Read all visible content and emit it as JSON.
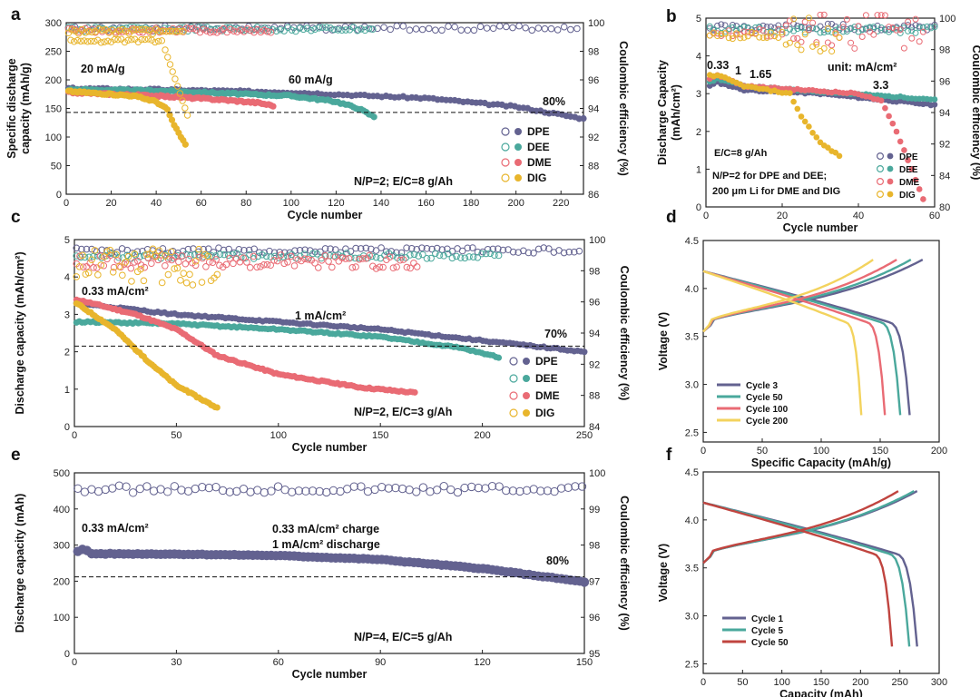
{
  "chart_data": [
    {
      "panel": "a",
      "type": "scatter",
      "xlabel": "Cycle number",
      "ylabel_lines": [
        "Specific discharge",
        "capacity (mAh/g)"
      ],
      "y2label": "Coulombic efficiency (%)",
      "xlim": [
        0,
        230
      ],
      "xticks": [
        0,
        20,
        40,
        60,
        80,
        100,
        120,
        140,
        160,
        180,
        200,
        220
      ],
      "ylim": [
        0,
        300
      ],
      "yticks": [
        0,
        50,
        100,
        150,
        200,
        250,
        300
      ],
      "y2ticks": [
        "86",
        "88",
        "92",
        "94",
        "96",
        "98",
        "100"
      ],
      "annotations": [
        "20 mA/g",
        "60 mA/g",
        "80%",
        "N/P=2;  E/C=8 g/Ah"
      ],
      "ref_line": 143,
      "series": [
        {
          "name": "DPE",
          "color": "#636290",
          "cap_x": [
            1,
            230
          ],
          "cap_pts": [
            [
              1,
              185
            ],
            [
              40,
              183
            ],
            [
              100,
              178
            ],
            [
              160,
              168
            ],
            [
              200,
              153
            ],
            [
              230,
              132
            ]
          ],
          "ce_x": [
            1,
            230
          ],
          "ce_y": 99.95
        },
        {
          "name": "DEE",
          "color": "#4aa89c",
          "cap_x": [
            1,
            138
          ],
          "cap_pts": [
            [
              1,
              183
            ],
            [
              40,
              181
            ],
            [
              100,
              172
            ],
            [
              120,
              162
            ],
            [
              130,
              150
            ],
            [
              138,
              133
            ]
          ],
          "ce_x": [
            1,
            138
          ],
          "ce_y": 99.8
        },
        {
          "name": "DME",
          "color": "#e96b74",
          "cap_x": [
            1,
            92
          ],
          "cap_pts": [
            [
              1,
              178
            ],
            [
              40,
              172
            ],
            [
              70,
              165
            ],
            [
              85,
              160
            ],
            [
              92,
              155
            ]
          ],
          "ce_x": [
            1,
            92
          ],
          "ce_y": 99.7
        },
        {
          "name": "DIG",
          "color": "#e8b52c",
          "cap_x": [
            1,
            53
          ],
          "cap_pts": [
            [
              1,
              180
            ],
            [
              30,
              172
            ],
            [
              40,
              162
            ],
            [
              45,
              148
            ],
            [
              48,
              120
            ],
            [
              53,
              87
            ]
          ],
          "ce_x": [
            1,
            53
          ],
          "ce_y": 99.2
        }
      ]
    },
    {
      "panel": "b",
      "type": "scatter",
      "xlabel": "Cycle number",
      "ylabel_lines": [
        "Discharge Capacity",
        "(mAh/cm²)"
      ],
      "y2label": "Coulombic efficiency (%)",
      "xlim": [
        0,
        60
      ],
      "xticks": [
        0,
        20,
        40,
        60
      ],
      "ylim": [
        0,
        5
      ],
      "yticks": [
        0,
        1,
        2,
        3,
        4,
        5
      ],
      "y2ticks": [
        "80",
        "84",
        "92",
        "94",
        "96",
        "98",
        "100"
      ],
      "annotations": [
        "0.33",
        "1",
        "1.65",
        "unit: mA/cm²",
        "3.3",
        "E/C=8 g/Ah",
        "N/P=2 for DPE and DEE;",
        "200 μm Li for DME and DIG"
      ],
      "series": [
        {
          "name": "DPE",
          "color": "#636290",
          "cap_pts": [
            [
              1,
              3.2
            ],
            [
              3,
              3.3
            ],
            [
              10,
              3.1
            ],
            [
              30,
              3.0
            ],
            [
              60,
              2.7
            ]
          ]
        },
        {
          "name": "DEE",
          "color": "#4aa89c",
          "cap_pts": [
            [
              1,
              3.3
            ],
            [
              3,
              3.4
            ],
            [
              10,
              3.2
            ],
            [
              30,
              3.05
            ],
            [
              60,
              2.85
            ]
          ]
        },
        {
          "name": "DME",
          "color": "#e96b74",
          "cap_pts": [
            [
              1,
              3.4
            ],
            [
              3,
              3.5
            ],
            [
              10,
              3.2
            ],
            [
              40,
              3.0
            ],
            [
              46,
              2.8
            ],
            [
              50,
              2.0
            ],
            [
              54,
              1.0
            ],
            [
              57,
              0.2
            ]
          ]
        },
        {
          "name": "DIG",
          "color": "#e8b52c",
          "cap_pts": [
            [
              1,
              3.5
            ],
            [
              4,
              3.45
            ],
            [
              10,
              3.2
            ],
            [
              22,
              3.0
            ],
            [
              25,
              2.4
            ],
            [
              30,
              1.7
            ],
            [
              35,
              1.35
            ]
          ]
        }
      ]
    },
    {
      "panel": "c",
      "type": "scatter",
      "xlabel": "Cycle number",
      "ylabel": "Discharge capacity (mAh/cm²)",
      "y2label": "Coulombic efficiency (%)",
      "xlim": [
        0,
        250
      ],
      "xticks": [
        0,
        50,
        100,
        150,
        200,
        250
      ],
      "ylim": [
        0,
        5
      ],
      "yticks": [
        0,
        1,
        2,
        3,
        4,
        5
      ],
      "y2ticks": [
        "84",
        "88",
        "92",
        "94",
        "96",
        "98",
        "100"
      ],
      "annotations": [
        "0.33 mA/cm²",
        "1 mA/cm²",
        "70%",
        "N/P=2, E/C=3 g/Ah"
      ],
      "ref_line": 2.15,
      "series": [
        {
          "name": "DPE",
          "color": "#636290",
          "cap_pts": [
            [
              1,
              3.3
            ],
            [
              50,
              3.0
            ],
            [
              100,
              2.8
            ],
            [
              150,
              2.6
            ],
            [
              200,
              2.3
            ],
            [
              250,
              2.0
            ]
          ]
        },
        {
          "name": "DEE",
          "color": "#4aa89c",
          "cap_pts": [
            [
              1,
              2.8
            ],
            [
              50,
              2.75
            ],
            [
              100,
              2.6
            ],
            [
              150,
              2.4
            ],
            [
              190,
              2.1
            ],
            [
              208,
              1.85
            ]
          ]
        },
        {
          "name": "DME",
          "color": "#e96b74",
          "cap_pts": [
            [
              1,
              3.4
            ],
            [
              30,
              3.0
            ],
            [
              50,
              2.6
            ],
            [
              70,
              1.9
            ],
            [
              100,
              1.4
            ],
            [
              140,
              1.05
            ],
            [
              168,
              0.9
            ]
          ]
        },
        {
          "name": "DIG",
          "color": "#e8b52c",
          "cap_pts": [
            [
              1,
              3.3
            ],
            [
              20,
              2.6
            ],
            [
              35,
              1.8
            ],
            [
              50,
              1.1
            ],
            [
              60,
              0.8
            ],
            [
              70,
              0.5
            ]
          ]
        }
      ]
    },
    {
      "panel": "d",
      "type": "line",
      "xlabel": "Specific Capacity (mAh/g)",
      "ylabel": "Voltage (V)",
      "xlim": [
        0,
        200
      ],
      "xticks": [
        0,
        50,
        100,
        150,
        200
      ],
      "ylim": [
        2.4,
        4.5
      ],
      "yticks": [
        2.5,
        3.0,
        3.5,
        4.0,
        4.5
      ],
      "series": [
        {
          "name": "Cycle 3",
          "color": "#636290",
          "max_cap": 175,
          "max_chg": 186
        },
        {
          "name": "Cycle 50",
          "color": "#4aa89c",
          "max_cap": 167,
          "max_chg": 176
        },
        {
          "name": "Cycle 100",
          "color": "#e96b74",
          "max_cap": 154,
          "max_chg": 164
        },
        {
          "name": "Cycle 200",
          "color": "#f3d35e",
          "max_cap": 134,
          "max_chg": 144
        }
      ]
    },
    {
      "panel": "e",
      "type": "scatter",
      "xlabel": "Cycle number",
      "ylabel": "Discharge capacity (mAh)",
      "y2label": "Coulombic efficiency (%)",
      "xlim": [
        0,
        150
      ],
      "xticks": [
        0,
        30,
        60,
        90,
        120,
        150
      ],
      "ylim": [
        0,
        500
      ],
      "yticks": [
        0,
        100,
        200,
        300,
        400,
        500
      ],
      "y2ticks": [
        "95",
        "96",
        "97",
        "98",
        "99",
        "100"
      ],
      "annotations": [
        "0.33 mA/cm²",
        "0.33 mA/cm² charge",
        "1 mA/cm² discharge",
        "80%",
        "N/P=4, E/C=5 g/Ah"
      ],
      "ref_line": 212,
      "series": [
        {
          "name": "DPE",
          "color": "#636290",
          "cap_pts": [
            [
              1,
              282
            ],
            [
              3,
              290
            ],
            [
              5,
              276
            ],
            [
              30,
              275
            ],
            [
              60,
              271
            ],
            [
              90,
              260
            ],
            [
              120,
              235
            ],
            [
              150,
              198
            ]
          ]
        }
      ]
    },
    {
      "panel": "f",
      "type": "line",
      "xlabel": "Capacity (mAh)",
      "ylabel": "Voltage (V)",
      "xlim": [
        0,
        300
      ],
      "xticks": [
        0,
        50,
        100,
        150,
        200,
        250,
        300
      ],
      "ylim": [
        2.4,
        4.5
      ],
      "yticks": [
        2.5,
        3.0,
        3.5,
        4.0,
        4.5
      ],
      "series": [
        {
          "name": "Cycle 1",
          "color": "#636290",
          "max_cap": 272,
          "max_chg": 272
        },
        {
          "name": "Cycle 5",
          "color": "#4aa89c",
          "max_cap": 262,
          "max_chg": 268
        },
        {
          "name": "Cycle 50",
          "color": "#c0443f",
          "max_cap": 240,
          "max_chg": 248
        }
      ]
    }
  ]
}
